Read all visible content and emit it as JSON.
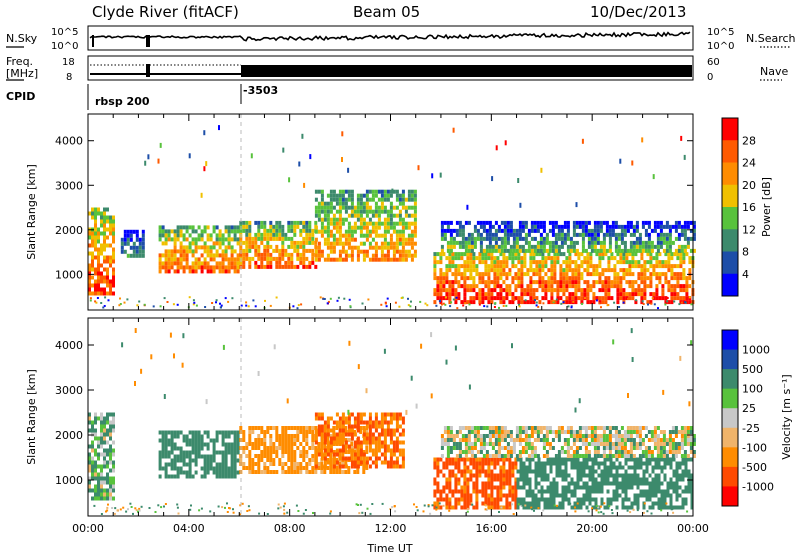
{
  "header": {
    "station": "Clyde River (fitACF)",
    "beam": "Beam 05",
    "date": "10/Dec/2013"
  },
  "top_panels": {
    "nsky_label": "N.Sky",
    "nsky_ticks": [
      "10^5",
      "10^0"
    ],
    "nsearch_label": "N.Search",
    "nsearch_ticks": [
      "10^5",
      "10^0"
    ],
    "freq_label_1": "Freq.",
    "freq_label_2": "[MHz]",
    "freq_ticks": [
      "18",
      "8"
    ],
    "nave_label": "Nave",
    "nave_ticks": [
      "60",
      "0"
    ],
    "cpid_label": "CPID",
    "cpid_segments": [
      {
        "name": "rbsp 200",
        "start_hour": 0
      },
      {
        "name": "-3503",
        "start_hour": 6
      }
    ]
  },
  "colors": {
    "power_scale": [
      "#0000ff",
      "#1d4ea8",
      "#3c8a6c",
      "#58c23c",
      "#f0c000",
      "#ff8c00",
      "#ff5a00",
      "#ff0000"
    ],
    "velocity_scale": [
      "#ff0000",
      "#ff4a00",
      "#ff8c00",
      "#f0b46a",
      "#c8c8c8",
      "#58c23c",
      "#3c8a6c",
      "#1d4ea8",
      "#0000ff"
    ]
  },
  "chart_data": [
    {
      "type": "heatmap",
      "title": "Power",
      "xlabel": "",
      "ylabel": "Slant Range [km]",
      "xlim": [
        0,
        24
      ],
      "ylim": [
        200,
        4600
      ],
      "yticks": [
        "1000",
        "2000",
        "3000",
        "4000"
      ],
      "colorbar_label": "Power [dB]",
      "colorbar_ticks": [
        "4",
        "8",
        "12",
        "16",
        "20",
        "24",
        "28"
      ],
      "clim": [
        0,
        32
      ],
      "echo_regions": [
        {
          "t_start": 0.0,
          "t_end": 1.0,
          "range_low": 600,
          "range_high": 2500,
          "peak_db": 28
        },
        {
          "t_start": 1.3,
          "t_end": 2.2,
          "range_low": 1400,
          "range_high": 2000,
          "peak_db": 14
        },
        {
          "t_start": 2.8,
          "t_end": 6.0,
          "range_low": 1100,
          "range_high": 2100,
          "peak_db": 26
        },
        {
          "t_start": 6.0,
          "t_end": 9.0,
          "range_low": 1200,
          "range_high": 2200,
          "peak_db": 26
        },
        {
          "t_start": 9.0,
          "t_end": 13.0,
          "range_low": 1300,
          "range_high": 2900,
          "peak_db": 24
        },
        {
          "t_start": 13.7,
          "t_end": 24.0,
          "range_low": 400,
          "range_high": 1500,
          "peak_db": 30
        },
        {
          "t_start": 14.0,
          "t_end": 24.0,
          "range_low": 1500,
          "range_high": 2200,
          "peak_db": 16
        }
      ]
    },
    {
      "type": "heatmap",
      "title": "Velocity",
      "xlabel": "Time UT",
      "ylabel": "Slant Range [km]",
      "xlim": [
        0,
        24
      ],
      "ylim": [
        200,
        4600
      ],
      "x_ticks": [
        "00:00",
        "04:00",
        "08:00",
        "12:00",
        "16:00",
        "20:00",
        "00:00"
      ],
      "yticks": [
        "1000",
        "2000",
        "3000",
        "4000"
      ],
      "colorbar_label": "Velocity [m s⁻¹]",
      "colorbar_ticks": [
        "1000",
        "500",
        "100",
        "25",
        "-25",
        "-100",
        "-500",
        "-1000"
      ],
      "echo_regions": [
        {
          "t_start": 0.0,
          "t_end": 1.0,
          "range_low": 600,
          "range_high": 2500,
          "velocity": 100
        },
        {
          "t_start": 2.8,
          "t_end": 6.0,
          "range_low": 1100,
          "range_high": 2100,
          "velocity": 300
        },
        {
          "t_start": 6.0,
          "t_end": 11.0,
          "range_low": 1200,
          "range_high": 2200,
          "velocity": -200
        },
        {
          "t_start": 9.0,
          "t_end": 12.5,
          "range_low": 1300,
          "range_high": 2500,
          "velocity": -500
        },
        {
          "t_start": 13.7,
          "t_end": 17.0,
          "range_low": 400,
          "range_high": 1500,
          "velocity": -600
        },
        {
          "t_start": 17.0,
          "t_end": 24.0,
          "range_low": 400,
          "range_high": 1500,
          "velocity": 300
        },
        {
          "t_start": 14.0,
          "t_end": 24.0,
          "range_low": 1500,
          "range_high": 2200,
          "velocity": 10
        }
      ]
    }
  ]
}
